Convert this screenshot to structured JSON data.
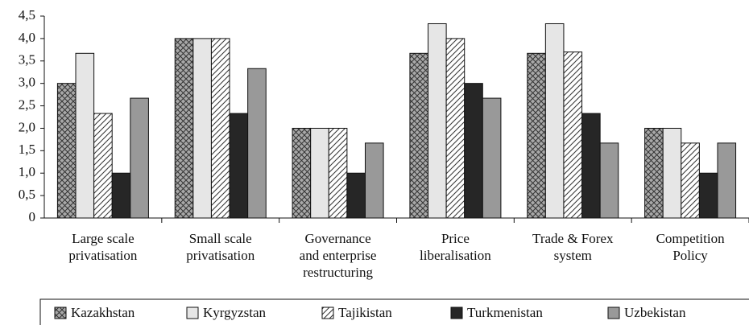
{
  "chart_data": {
    "type": "bar",
    "categories": [
      [
        "Large scale",
        "privatisation"
      ],
      [
        "Small scale",
        "privatisation"
      ],
      [
        "Governance",
        "and enterprise",
        "restructuring"
      ],
      [
        "Price",
        "liberalisation"
      ],
      [
        "Trade & Forex",
        "system"
      ],
      [
        "Competition",
        "Policy"
      ]
    ],
    "series": [
      {
        "name": "Kazakhstan",
        "color": "#a8a8a8",
        "pattern": "crosshatch",
        "values": [
          3.0,
          4.0,
          2.0,
          3.67,
          3.67,
          2.0
        ]
      },
      {
        "name": "Kyrgyzstan",
        "color": "#e6e6e6",
        "values": [
          3.67,
          4.0,
          2.0,
          4.33,
          4.33,
          2.0
        ]
      },
      {
        "name": "Tajikistan",
        "color": "#ffffff",
        "pattern": "diagonal",
        "values": [
          2.33,
          4.0,
          2.0,
          4.0,
          3.7,
          1.67
        ]
      },
      {
        "name": "Turkmenistan",
        "color": "#262626",
        "values": [
          1.0,
          2.33,
          1.0,
          3.0,
          2.33,
          1.0
        ]
      },
      {
        "name": "Uzbekistan",
        "color": "#999999",
        "values": [
          2.67,
          3.33,
          1.67,
          2.67,
          1.67,
          1.67
        ]
      }
    ],
    "ylim": [
      0,
      4.5
    ],
    "yticks": [
      0,
      {
        "value": 0.5,
        "label": "0,5"
      },
      {
        "value": 1,
        "label": "1,0"
      },
      {
        "value": 1.5,
        "label": "1,5"
      },
      {
        "value": 2,
        "label": "2,0"
      },
      {
        "value": 2.5,
        "label": "2,5"
      },
      {
        "value": 3,
        "label": "3,0"
      },
      {
        "value": 3.5,
        "label": "3,5"
      },
      {
        "value": 4,
        "label": "4,0"
      },
      {
        "value": 4.5,
        "label": "4,5"
      }
    ],
    "legend": "bottom"
  }
}
